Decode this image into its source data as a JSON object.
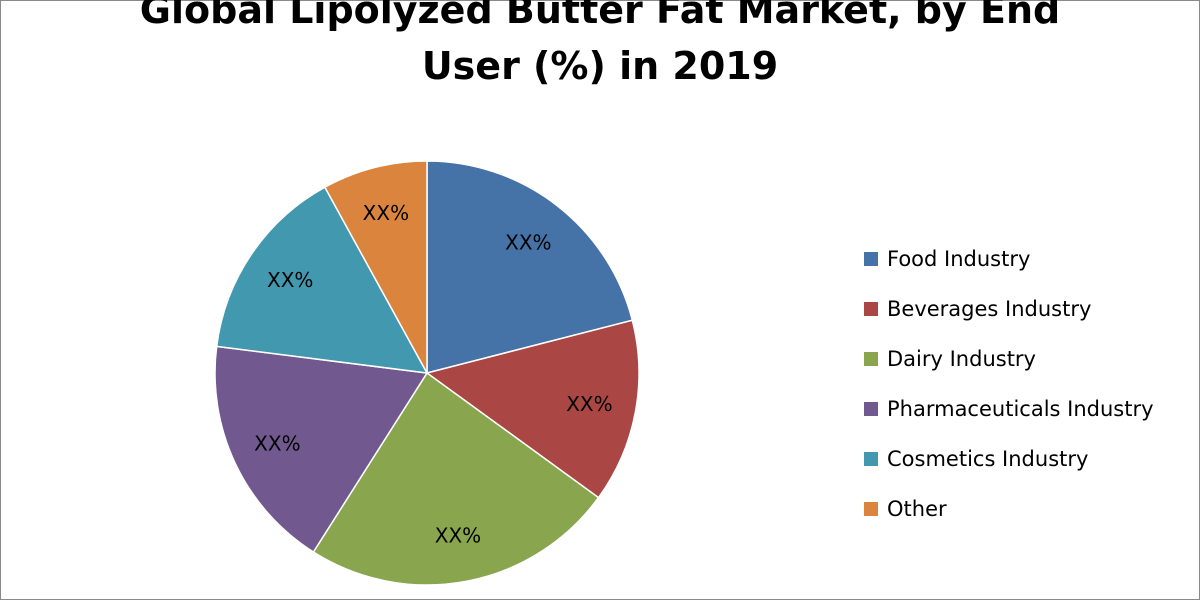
{
  "chart_data": {
    "type": "pie",
    "title_lines": [
      "Global Lipolyzed Butter Fat Market, by End",
      "User (%) in 2019"
    ],
    "categories": [
      "Food Industry",
      "Beverages Industry",
      "Dairy Industry",
      "Pharmaceuticals Industry",
      "Cosmetics Industry",
      "Other"
    ],
    "values": [
      21,
      14,
      24,
      18,
      15,
      8
    ],
    "data_labels": [
      "XX%",
      "XX%",
      "XX%",
      "XX%",
      "XX%",
      "XX%"
    ],
    "colors": [
      "#4572A7",
      "#AA4643",
      "#89A54E",
      "#71588F",
      "#4198AF",
      "#DB843D"
    ],
    "legend_position": "right",
    "start_angle": "top, clockwise"
  }
}
